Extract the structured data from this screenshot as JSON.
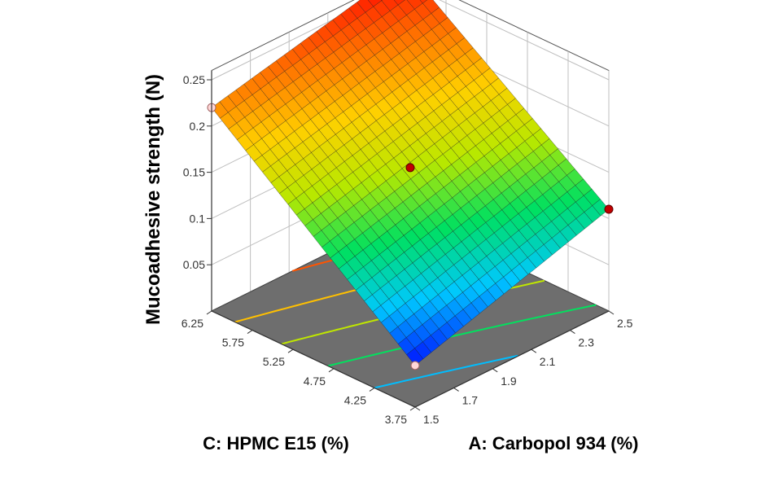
{
  "chart_data": {
    "type": "surface3d",
    "zlabel": "Mucoadhesive strength (N)",
    "xlabel": "C: HPMC E15 (%)",
    "ylabel": "A: Carbopol 934 (%)",
    "z_ticks": [
      "0.05",
      "0.1",
      "0.15",
      "0.2",
      "0.25"
    ],
    "z_tick_values": [
      0.05,
      0.1,
      0.15,
      0.2,
      0.25
    ],
    "zlim": [
      0,
      0.26
    ],
    "c_ticks": [
      "3.75",
      "4.25",
      "4.75",
      "5.25",
      "5.75",
      "6.25"
    ],
    "c_tick_values": [
      3.75,
      4.25,
      4.75,
      5.25,
      5.75,
      6.25
    ],
    "c_range": [
      3.75,
      6.25
    ],
    "a_ticks": [
      "1.5",
      "1.7",
      "1.9",
      "2.1",
      "2.3",
      "2.5"
    ],
    "a_tick_values": [
      1.5,
      1.7,
      1.9,
      2.1,
      2.3,
      2.5
    ],
    "a_range": [
      1.5,
      2.5
    ],
    "surface_corners": {
      "c_low_a_low": 0.045,
      "c_high_a_low": 0.22,
      "c_low_a_high": 0.11,
      "c_high_a_high": 0.268
    },
    "design_points": [
      {
        "C": 3.75,
        "A": 1.5,
        "value": 0.045,
        "marker": "below-surface"
      },
      {
        "C": 6.25,
        "A": 1.5,
        "value": 0.22,
        "marker": "below-surface"
      },
      {
        "C": 3.75,
        "A": 2.5,
        "value": 0.11,
        "marker": "above-surface"
      },
      {
        "C": 6.25,
        "A": 2.5,
        "value": 0.268,
        "marker": "above-surface"
      },
      {
        "C": 5.0,
        "A": 2.0,
        "value": 0.155,
        "marker": "above-surface"
      }
    ],
    "contour_levels": [
      0.08,
      0.12,
      0.16,
      0.2,
      0.24
    ],
    "colormap": [
      "#0010ff",
      "#00c8ff",
      "#00e060",
      "#b8e800",
      "#ffd000",
      "#ff7000",
      "#ff0000"
    ],
    "floor_color": "#6e6e6e",
    "marker_above_color": "#c00000",
    "marker_below_color": "#ffd8d8",
    "grid": true
  }
}
